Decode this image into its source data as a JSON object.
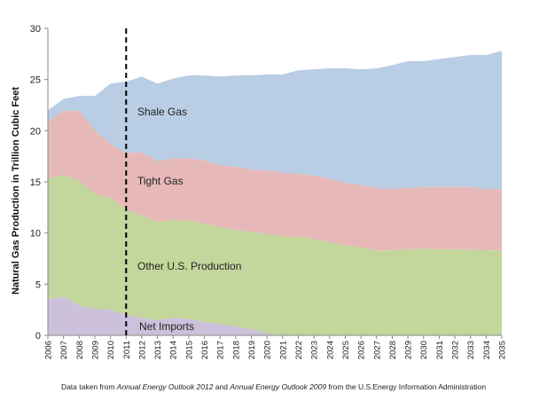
{
  "chart_data": {
    "type": "area",
    "stacked": true,
    "xlabel": "",
    "ylabel": "Natural Gas Production in Trillion Cubic Feet",
    "ylim": [
      0,
      30
    ],
    "yticks": [
      0,
      5,
      10,
      15,
      20,
      25,
      30
    ],
    "x": [
      "2006",
      "2007",
      "2008",
      "2009",
      "2010",
      "2011",
      "2012",
      "2013",
      "2014",
      "2015",
      "2016",
      "2017",
      "2018",
      "2019",
      "2020",
      "2021",
      "2022",
      "2023",
      "2024",
      "2025",
      "2026",
      "2027",
      "2028",
      "2029",
      "2030",
      "2031",
      "2032",
      "2033",
      "2034",
      "2035"
    ],
    "grid": false,
    "divider": {
      "x": "2011",
      "style": "dashed"
    },
    "series": [
      {
        "name": "Net Imports",
        "color": "#ccc0da",
        "values": [
          3.5,
          3.8,
          2.9,
          2.6,
          2.5,
          2.0,
          1.7,
          1.5,
          1.7,
          1.6,
          1.3,
          1.1,
          0.9,
          0.6,
          0.2,
          0.0,
          0.0,
          0.0,
          0.0,
          0.0,
          0.0,
          0.0,
          0.0,
          0.0,
          0.0,
          0.0,
          0.0,
          0.0,
          0.0,
          0.0
        ]
      },
      {
        "name": "Other U.S. Production",
        "color": "#c3d69b",
        "values": [
          11.8,
          11.9,
          12.2,
          11.2,
          10.9,
          10.3,
          10.0,
          9.6,
          9.6,
          9.6,
          9.6,
          9.5,
          9.4,
          9.5,
          9.7,
          9.7,
          9.6,
          9.4,
          9.1,
          8.8,
          8.6,
          8.3,
          8.3,
          8.4,
          8.5,
          8.4,
          8.4,
          8.4,
          8.3,
          8.3
        ]
      },
      {
        "name": "Tight Gas",
        "color": "#e6b9b8",
        "values": [
          5.6,
          6.3,
          6.8,
          6.2,
          5.3,
          5.5,
          6.2,
          5.9,
          6.0,
          6.1,
          6.2,
          6.0,
          6.2,
          6.1,
          6.2,
          6.2,
          6.2,
          6.2,
          6.2,
          6.1,
          6.1,
          6.1,
          6.0,
          6.0,
          6.0,
          6.1,
          6.1,
          6.1,
          6.0,
          6.0
        ]
      },
      {
        "name": "Shale Gas",
        "color": "#b9cde5",
        "values": [
          1.1,
          1.1,
          1.5,
          3.4,
          5.9,
          7.0,
          7.4,
          7.6,
          7.8,
          8.1,
          8.3,
          8.7,
          8.9,
          9.2,
          9.4,
          9.6,
          10.1,
          10.4,
          10.8,
          11.2,
          11.3,
          11.7,
          12.1,
          12.4,
          12.3,
          12.5,
          12.7,
          12.9,
          13.1,
          13.5
        ]
      }
    ],
    "annotations": [
      "Shale Gas",
      "Tight Gas",
      "Other U.S. Production",
      "Net Imports"
    ]
  },
  "source": {
    "prefix": "Data taken from ",
    "title1": "Annual Energy Outlook 2012",
    "middle": " and ",
    "title2": "Annual Energy Outlook 2009",
    "suffix": " from the U.S.Energy Information  Administration"
  }
}
